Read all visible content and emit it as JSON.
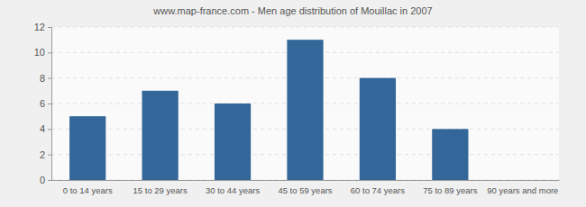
{
  "chart_data": {
    "type": "bar",
    "title": "www.map-france.com - Men age distribution of Mouillac in 2007",
    "categories": [
      "0 to 14 years",
      "15 to 29 years",
      "30 to 44 years",
      "45 to 59 years",
      "60 to 74 years",
      "75 to 89 years",
      "90 years and more"
    ],
    "values": [
      5,
      7,
      6,
      11,
      8,
      4,
      0
    ],
    "color": "#336699",
    "ylim": [
      0,
      12
    ],
    "yticks": [
      0,
      2,
      4,
      6,
      8,
      10,
      12
    ],
    "grid": true
  }
}
